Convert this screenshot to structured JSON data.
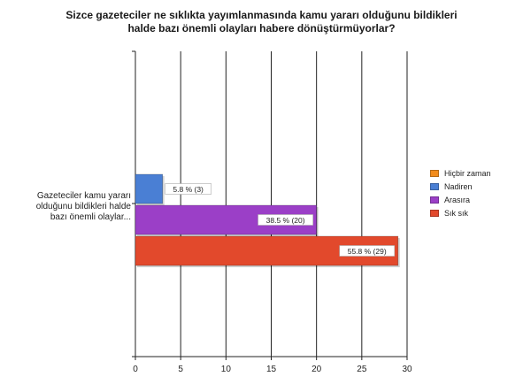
{
  "chart_data": {
    "type": "bar",
    "orientation": "horizontal",
    "title_lines": [
      "Sizce gazeteciler ne sıklıkta yayımlanmasında kamu yararı olduğunu bildikleri",
      "halde bazı önemli olayları habere dönüştürmüyorlar?"
    ],
    "category_label_lines": [
      "Gazeteciler kamu yararı",
      "olduğunu bildikleri halde",
      "bazı önemli olaylar..."
    ],
    "xlim": [
      0,
      30
    ],
    "x_ticks": [
      0,
      5,
      10,
      15,
      20,
      25,
      30
    ],
    "grid": true,
    "legend_position": "right",
    "series": [
      {
        "name": "Hiçbir zaman",
        "value": 0,
        "percent_label": "",
        "color": "#f28c1c"
      },
      {
        "name": "Nadiren",
        "value": 3,
        "percent_label": "5.8 % (3)",
        "color": "#4a7fd4"
      },
      {
        "name": "Arasıra",
        "value": 20,
        "percent_label": "38.5 % (20)",
        "color": "#9b3fc7"
      },
      {
        "name": "Sık sık",
        "value": 29,
        "percent_label": "55.8 % (29)",
        "color": "#e2492c"
      }
    ]
  }
}
